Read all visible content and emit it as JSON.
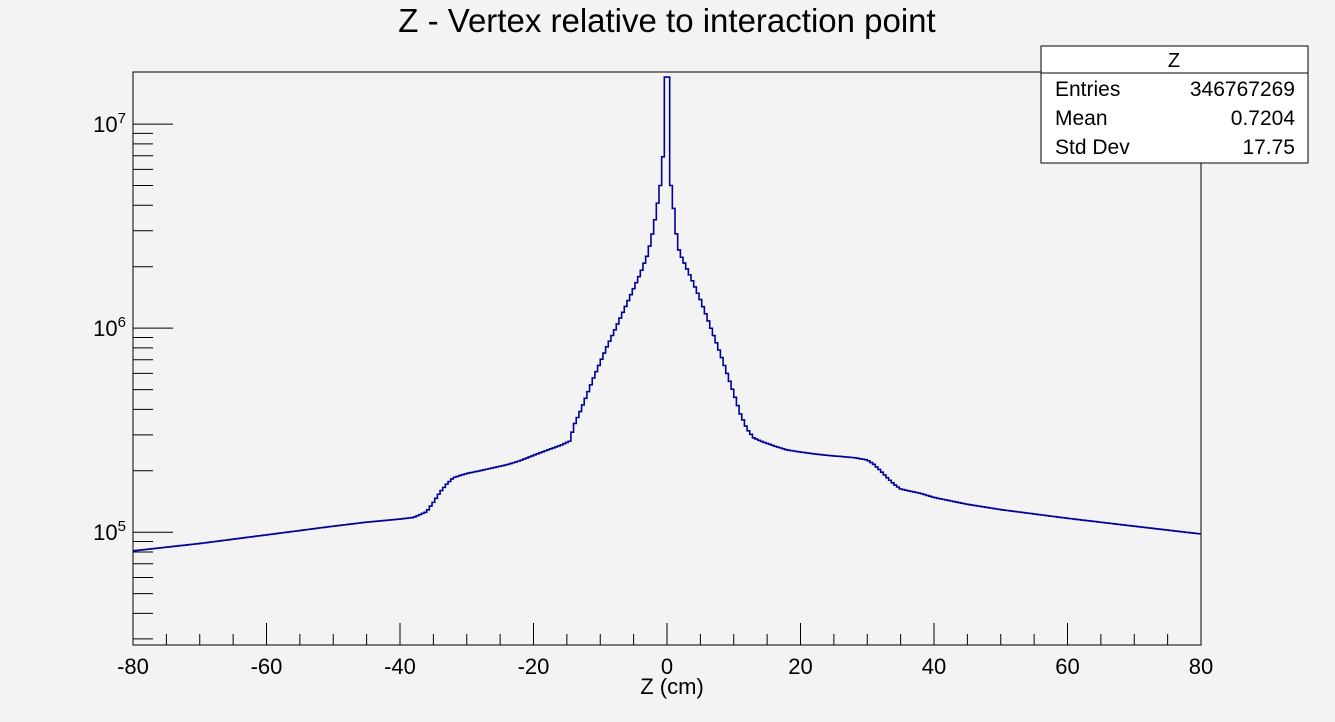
{
  "colors": {
    "background": "#f3f3f3",
    "histogram_line": "#000099",
    "axis": "#000000",
    "stats_box_fill": "#ffffff"
  },
  "stats_box": {
    "title": "Z",
    "rows": [
      {
        "label": "Entries",
        "value": "346767269"
      },
      {
        "label": "Mean",
        "value": "0.7204"
      },
      {
        "label": "Std Dev",
        "value": "17.75"
      }
    ]
  },
  "chart_data": {
    "type": "line",
    "style": "step",
    "title": "Z - Vertex relative to interaction point",
    "xlabel": "Z (cm)",
    "ylabel": "",
    "xlim": [
      -80,
      80
    ],
    "ylim": [
      28000,
      18000000
    ],
    "yscale": "log",
    "grid": false,
    "legend": "none",
    "x_ticks": [
      -80,
      -60,
      -40,
      -20,
      0,
      20,
      40,
      60,
      80
    ],
    "x_tick_labels": [
      "-80",
      "-60",
      "-40",
      "-20",
      "0",
      "20",
      "40",
      "60",
      "80"
    ],
    "y_ticks": [
      100000,
      1000000,
      10000000
    ],
    "y_tick_labels": [
      {
        "base": "10",
        "exp": "5"
      },
      {
        "base": "10",
        "exp": "6"
      },
      {
        "base": "10",
        "exp": "7"
      }
    ],
    "series": [
      {
        "x": [
          -80,
          -70,
          -60,
          -50,
          -45,
          -40,
          -38,
          -36,
          -35,
          -34,
          -33,
          -32,
          -30,
          -28,
          -26,
          -24,
          -22,
          -20,
          -18,
          -16,
          -14.5,
          -14,
          -13,
          -12,
          -11,
          -10,
          -9,
          -8,
          -7,
          -6,
          -5,
          -4,
          -3,
          -2.5,
          -2,
          -1.5,
          -1,
          -0.5,
          -0.3,
          0,
          0.3,
          0.6,
          0.9,
          1.2,
          1.5,
          2,
          3,
          4,
          5,
          6,
          7,
          8,
          9,
          10,
          11,
          12,
          13,
          14,
          16,
          18,
          20,
          22,
          24,
          26,
          28,
          30,
          31,
          32,
          33,
          34,
          35,
          36,
          38,
          40,
          45,
          50,
          60,
          70,
          80
        ],
        "y": [
          81000,
          88000,
          97000,
          107000,
          112000,
          116000,
          118000,
          126000,
          140000,
          157000,
          172000,
          185000,
          194000,
          200000,
          207000,
          214000,
          224000,
          238000,
          252000,
          266000,
          280000,
          330000,
          390000,
          470000,
          570000,
          680000,
          810000,
          950000,
          1120000,
          1320000,
          1560000,
          1850000,
          2250000,
          2600000,
          3100000,
          3900000,
          5000000,
          7500000,
          17000000,
          17000000,
          17000000,
          5000000,
          4000000,
          3600000,
          2600000,
          2300000,
          1950000,
          1650000,
          1380000,
          1130000,
          920000,
          750000,
          600000,
          480000,
          380000,
          320000,
          290000,
          280000,
          265000,
          253000,
          247000,
          242000,
          238000,
          235000,
          232000,
          226000,
          215000,
          200000,
          185000,
          172000,
          163000,
          160000,
          155000,
          148000,
          137000,
          129000,
          117000,
          107000,
          98000
        ]
      }
    ]
  }
}
